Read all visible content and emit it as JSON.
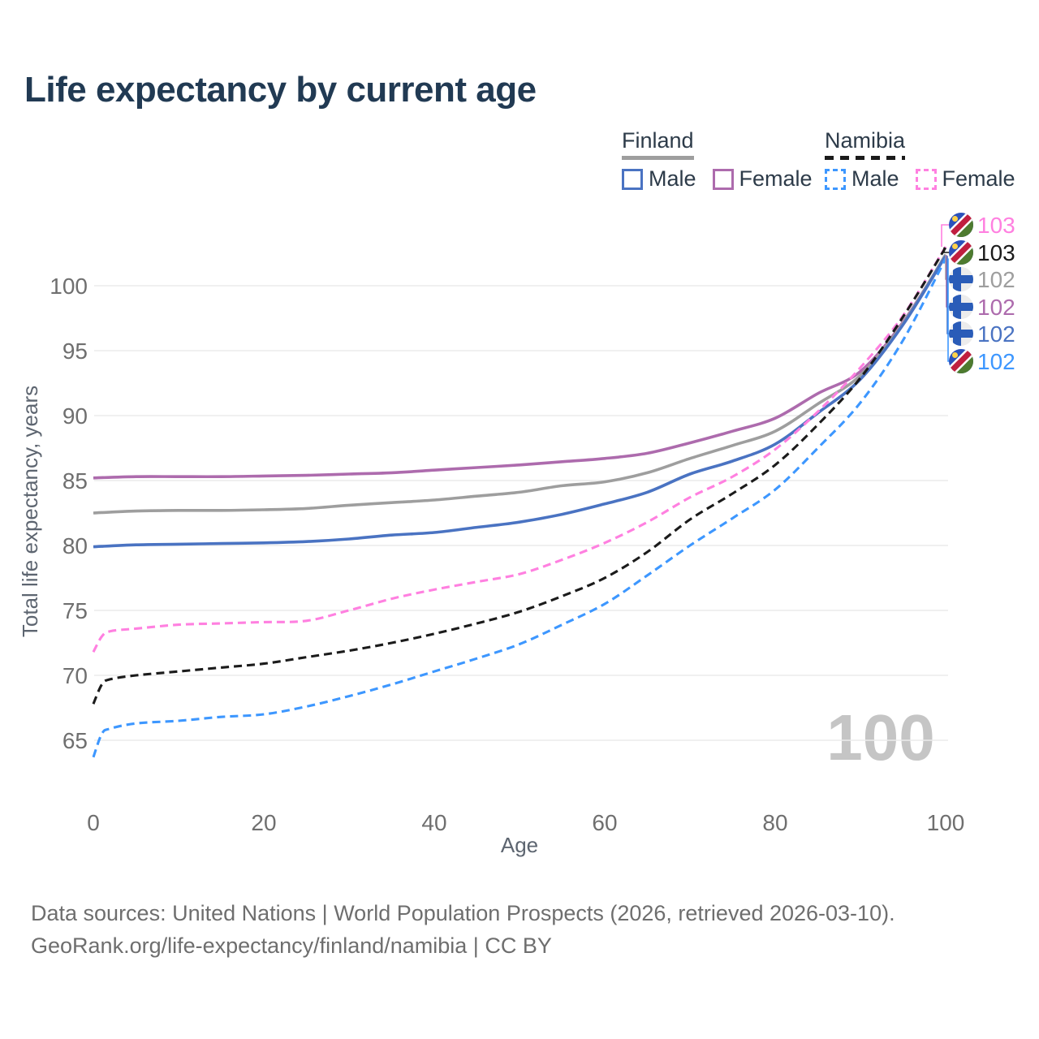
{
  "title": "Life expectancy by current age",
  "legend": {
    "groups": [
      {
        "country": "Finland",
        "line_style": "solid",
        "underline_color": "#9e9e9e",
        "items": [
          {
            "label": "Male",
            "color": "#4a73c2",
            "dashed": false
          },
          {
            "label": "Female",
            "color": "#ad6bad",
            "dashed": false
          }
        ]
      },
      {
        "country": "Namibia",
        "line_style": "dashed",
        "underline_color": "#1b1b1b",
        "items": [
          {
            "label": "Male",
            "color": "#3d97ff",
            "dashed": true
          },
          {
            "label": "Female",
            "color": "#ff80e0",
            "dashed": true
          }
        ]
      }
    ]
  },
  "chart_data": {
    "type": "line",
    "title": "Life expectancy by current age",
    "xlabel": "Age",
    "ylabel": "Total life expectancy, years",
    "xlim": [
      0,
      100
    ],
    "ylim": [
      63,
      105.5
    ],
    "x_ticks": [
      0,
      20,
      40,
      60,
      80,
      100
    ],
    "y_ticks": [
      65,
      70,
      75,
      80,
      85,
      90,
      95,
      100
    ],
    "grid": "horizontal",
    "watermark": "100",
    "series": [
      {
        "id": "finland-female",
        "name": "Finland Female",
        "country": "Finland",
        "sex": "Female",
        "color": "#ad6bad",
        "dashed": false,
        "flag": "finland",
        "end_label": "102",
        "x": [
          0,
          5,
          10,
          15,
          20,
          25,
          30,
          35,
          40,
          45,
          50,
          55,
          60,
          65,
          70,
          75,
          80,
          85,
          90,
          95,
          100
        ],
        "y": [
          85.2,
          85.3,
          85.3,
          85.3,
          85.35,
          85.4,
          85.5,
          85.6,
          85.8,
          86.0,
          86.2,
          86.45,
          86.7,
          87.1,
          87.9,
          88.8,
          89.8,
          91.7,
          93.4,
          97.2,
          102.35
        ]
      },
      {
        "id": "finland-total",
        "name": "Finland Total",
        "country": "Finland",
        "sex": "Both",
        "color": "#9e9e9e",
        "dashed": false,
        "flag": "finland",
        "end_label": "102",
        "x": [
          0,
          5,
          10,
          15,
          20,
          25,
          30,
          35,
          40,
          45,
          50,
          55,
          60,
          65,
          70,
          75,
          80,
          85,
          90,
          95,
          100
        ],
        "y": [
          82.5,
          82.65,
          82.7,
          82.7,
          82.75,
          82.85,
          83.1,
          83.3,
          83.5,
          83.8,
          84.1,
          84.6,
          84.9,
          85.6,
          86.7,
          87.7,
          88.8,
          90.9,
          93.1,
          97.1,
          102.4
        ]
      },
      {
        "id": "finland-male",
        "name": "Finland Male",
        "country": "Finland",
        "sex": "Male",
        "color": "#4a73c2",
        "dashed": false,
        "flag": "finland",
        "end_label": "102",
        "x": [
          0,
          5,
          10,
          15,
          20,
          25,
          30,
          35,
          40,
          45,
          50,
          55,
          60,
          65,
          70,
          75,
          80,
          85,
          90,
          95,
          100
        ],
        "y": [
          79.9,
          80.05,
          80.1,
          80.15,
          80.2,
          80.3,
          80.5,
          80.8,
          81.0,
          81.4,
          81.8,
          82.4,
          83.2,
          84.1,
          85.5,
          86.5,
          87.8,
          90.2,
          92.8,
          97.0,
          102.3
        ]
      },
      {
        "id": "namibia-female",
        "name": "Namibia Female",
        "country": "Namibia",
        "sex": "Female",
        "color": "#ff80e0",
        "dashed": true,
        "flag": "namibia",
        "end_label": "103",
        "x": [
          0,
          1,
          2,
          5,
          10,
          15,
          20,
          25,
          30,
          35,
          40,
          45,
          50,
          55,
          60,
          65,
          70,
          75,
          80,
          85,
          90,
          95,
          100
        ],
        "y": [
          71.8,
          73.0,
          73.4,
          73.6,
          73.9,
          74.0,
          74.1,
          74.2,
          75.0,
          75.9,
          76.6,
          77.2,
          77.8,
          78.9,
          80.2,
          81.8,
          83.7,
          85.3,
          87.4,
          90.3,
          93.7,
          97.7,
          103.0
        ]
      },
      {
        "id": "namibia-total",
        "name": "Namibia Total",
        "country": "Namibia",
        "sex": "Both",
        "color": "#1b1b1b",
        "dashed": true,
        "flag": "namibia",
        "end_label": "103",
        "x": [
          0,
          1,
          2,
          5,
          10,
          15,
          20,
          25,
          30,
          35,
          40,
          45,
          50,
          55,
          60,
          65,
          70,
          75,
          80,
          85,
          90,
          95,
          100
        ],
        "y": [
          67.8,
          69.3,
          69.7,
          70.0,
          70.3,
          70.6,
          70.9,
          71.4,
          71.9,
          72.5,
          73.2,
          74.0,
          74.9,
          76.1,
          77.5,
          79.5,
          82.0,
          84.0,
          86.2,
          89.3,
          92.9,
          97.6,
          102.95
        ]
      },
      {
        "id": "namibia-male",
        "name": "Namibia Male",
        "country": "Namibia",
        "sex": "Male",
        "color": "#3d97ff",
        "dashed": true,
        "flag": "namibia",
        "end_label": "102",
        "x": [
          0,
          1,
          2,
          5,
          10,
          15,
          20,
          25,
          30,
          35,
          40,
          45,
          50,
          55,
          60,
          65,
          70,
          75,
          80,
          85,
          90,
          95,
          100
        ],
        "y": [
          63.7,
          65.5,
          65.9,
          66.3,
          66.5,
          66.8,
          67.0,
          67.6,
          68.4,
          69.3,
          70.3,
          71.3,
          72.4,
          73.9,
          75.5,
          77.7,
          80.0,
          82.1,
          84.3,
          87.5,
          91.0,
          95.8,
          102.1
        ]
      }
    ],
    "end_labels": [
      {
        "series": "namibia-female",
        "value": "103"
      },
      {
        "series": "namibia-total",
        "value": "103"
      },
      {
        "series": "finland-total",
        "value": "102"
      },
      {
        "series": "finland-female",
        "value": "102"
      },
      {
        "series": "finland-male",
        "value": "102"
      },
      {
        "series": "namibia-male",
        "value": "102"
      }
    ]
  },
  "footer": {
    "line1": "Data sources: United Nations | World Population Prospects (2026, retrieved 2026-03-10).",
    "line2": "GeoRank.org/life-expectancy/finland/namibia | CC BY"
  }
}
